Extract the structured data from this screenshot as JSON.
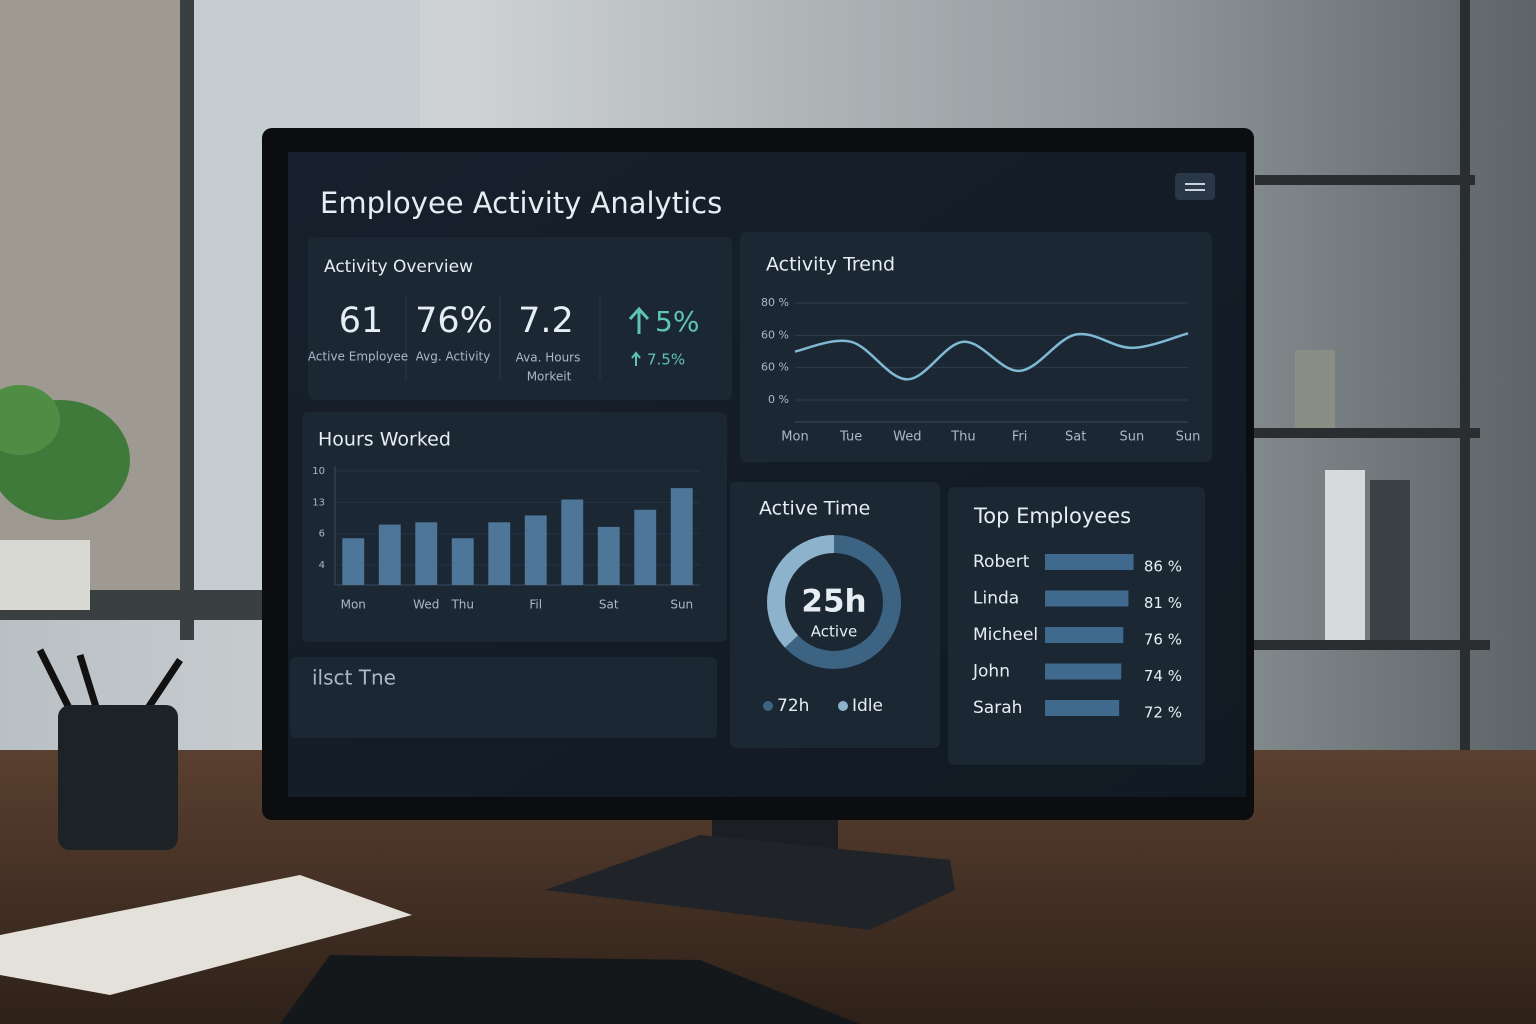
{
  "header": {
    "title": "Employee Activity Analytics"
  },
  "overview": {
    "title": "Activity Overview",
    "stats": [
      {
        "value": "61",
        "label": "Active Employee"
      },
      {
        "value": "76%",
        "label": "Avg. Activity"
      },
      {
        "value": "7.2",
        "label": "Ava. Hours",
        "label2": "Morkeit"
      },
      {
        "value": "5%",
        "note": "7.5%"
      }
    ]
  },
  "activity_trend": {
    "type": "line",
    "title": "Activity Trend",
    "y_labels": [
      "80 %",
      "60 %",
      "60 %",
      "0 %"
    ],
    "ylim": [
      0,
      80
    ],
    "categories": [
      "Mon",
      "Tue",
      "Wed",
      "Thu",
      "Fri",
      "Sat",
      "Sun",
      "Sun"
    ],
    "values": [
      40,
      48,
      17,
      48,
      24,
      54,
      43,
      55
    ],
    "color": "#7fb9d3",
    "grid": true
  },
  "hours_worked": {
    "type": "bar",
    "title": "Hours Worked",
    "y_labels": [
      "10",
      "13",
      "6",
      "4"
    ],
    "ylim": [
      0,
      10
    ],
    "categories": [
      "Mon",
      null,
      "Wed",
      "Thu",
      null,
      "Fil",
      null,
      "Sat",
      null,
      "Sun"
    ],
    "values": [
      4.1,
      5.3,
      5.5,
      4.1,
      5.5,
      6.1,
      7.5,
      5.1,
      6.6,
      8.5
    ],
    "color": "#4d7699",
    "grid": true
  },
  "active_time": {
    "type": "pie",
    "title": "Active Time",
    "center_value": "25h",
    "center_label": "Active",
    "segments": [
      {
        "name": "72h",
        "color": "#3d6383",
        "value": 63
      },
      {
        "name": "Idle",
        "color": "#8db2cb",
        "value": 37
      }
    ]
  },
  "top_employees": {
    "type": "bar",
    "title": "Top Employees",
    "categories": [
      "Robert",
      "Linda",
      "Micheel",
      "John",
      "Sarah"
    ],
    "values": [
      86,
      81,
      76,
      74,
      72
    ],
    "value_labels": [
      "86 %",
      "81 %",
      "76 %",
      "74 %",
      "72 %"
    ],
    "xlim": [
      0,
      100
    ],
    "color": "#3f6a8e"
  },
  "footer_panel": {
    "title": "ilsct Tne"
  }
}
